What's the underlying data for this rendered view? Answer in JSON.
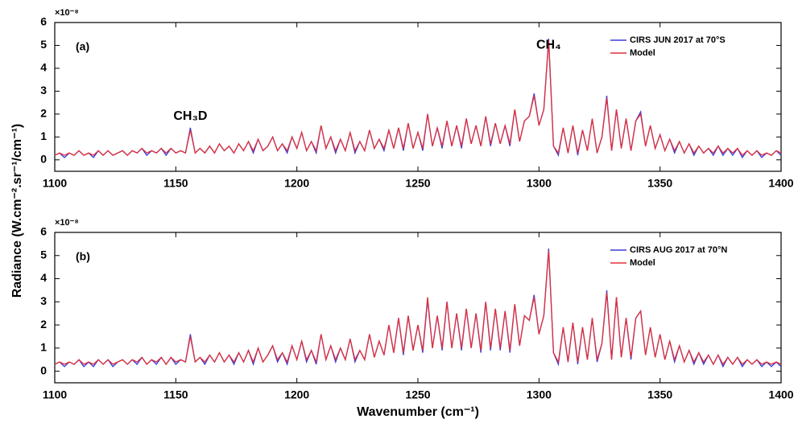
{
  "chart_data": [
    {
      "type": "line",
      "panel_label": "(a)",
      "axis_multiplier": "×10⁻⁸",
      "ylabel": "Radiance (W.cm⁻².sr⁻¹/cm⁻¹)",
      "annotations": [
        {
          "text": "CH₄",
          "x": 1304,
          "y": 5.0
        },
        {
          "text": "CH₃D",
          "x": 1156,
          "y": 1.9
        }
      ],
      "legend": "upper right",
      "xlim": [
        1100,
        1400
      ],
      "xticks": [
        1100,
        1150,
        1200,
        1250,
        1300,
        1350,
        1400
      ],
      "ylim": [
        -0.5,
        6
      ],
      "yticks": [
        0,
        1,
        2,
        3,
        4,
        5,
        6
      ],
      "x": [
        1100,
        1102,
        1104,
        1106,
        1108,
        1110,
        1112,
        1114,
        1116,
        1118,
        1120,
        1122,
        1124,
        1126,
        1128,
        1130,
        1132,
        1134,
        1136,
        1138,
        1140,
        1142,
        1144,
        1146,
        1148,
        1150,
        1152,
        1154,
        1156,
        1158,
        1160,
        1162,
        1164,
        1166,
        1168,
        1170,
        1172,
        1174,
        1176,
        1178,
        1180,
        1182,
        1184,
        1186,
        1188,
        1190,
        1192,
        1194,
        1196,
        1198,
        1200,
        1202,
        1204,
        1206,
        1208,
        1210,
        1212,
        1214,
        1216,
        1218,
        1220,
        1222,
        1224,
        1226,
        1228,
        1230,
        1232,
        1234,
        1236,
        1238,
        1240,
        1242,
        1244,
        1246,
        1248,
        1250,
        1252,
        1254,
        1256,
        1258,
        1260,
        1262,
        1264,
        1266,
        1268,
        1270,
        1272,
        1274,
        1276,
        1278,
        1280,
        1282,
        1284,
        1286,
        1288,
        1290,
        1292,
        1294,
        1296,
        1298,
        1300,
        1302,
        1304,
        1306,
        1308,
        1310,
        1312,
        1314,
        1316,
        1318,
        1320,
        1322,
        1324,
        1326,
        1328,
        1330,
        1332,
        1334,
        1336,
        1338,
        1340,
        1342,
        1344,
        1346,
        1348,
        1350,
        1352,
        1354,
        1356,
        1358,
        1360,
        1362,
        1364,
        1366,
        1368,
        1370,
        1372,
        1374,
        1376,
        1378,
        1380,
        1382,
        1384,
        1386,
        1388,
        1390,
        1392,
        1394,
        1396,
        1398,
        1400
      ],
      "series": [
        {
          "name": "CIRS JUN 2017 at 70°S",
          "color": "#3b3bd8",
          "values": [
            0.2,
            0.3,
            0.1,
            0.3,
            0.2,
            0.4,
            0.2,
            0.3,
            0.1,
            0.4,
            0.2,
            0.4,
            0.2,
            0.3,
            0.4,
            0.2,
            0.4,
            0.3,
            0.5,
            0.2,
            0.4,
            0.3,
            0.5,
            0.2,
            0.5,
            0.3,
            0.4,
            0.3,
            1.4,
            0.3,
            0.5,
            0.3,
            0.6,
            0.3,
            0.7,
            0.4,
            0.6,
            0.3,
            0.7,
            0.4,
            0.8,
            0.3,
            0.9,
            0.4,
            0.6,
            1.0,
            0.4,
            0.7,
            0.3,
            1.0,
            0.5,
            1.2,
            0.4,
            0.8,
            0.3,
            1.5,
            0.5,
            1.0,
            0.3,
            0.9,
            0.4,
            1.2,
            0.3,
            0.8,
            0.4,
            1.3,
            0.5,
            0.9,
            0.4,
            1.3,
            0.5,
            1.4,
            0.4,
            1.6,
            0.5,
            1.2,
            0.4,
            2.0,
            0.6,
            1.4,
            0.5,
            1.7,
            0.6,
            1.5,
            0.5,
            1.8,
            0.7,
            1.5,
            0.6,
            1.9,
            0.6,
            1.6,
            0.7,
            1.5,
            0.6,
            2.2,
            0.8,
            1.7,
            1.9,
            2.9,
            1.5,
            2.2,
            5.3,
            0.6,
            0.2,
            1.4,
            0.3,
            1.5,
            0.2,
            1.3,
            0.4,
            1.8,
            0.3,
            1.0,
            2.8,
            0.4,
            2.2,
            0.5,
            1.8,
            0.4,
            1.7,
            2.1,
            0.6,
            1.5,
            0.5,
            1.1,
            0.4,
            0.9,
            0.3,
            0.8,
            0.3,
            0.7,
            0.2,
            0.6,
            0.3,
            0.5,
            0.2,
            0.6,
            0.2,
            0.5,
            0.2,
            0.5,
            0.1,
            0.4,
            0.2,
            0.4,
            0.1,
            0.3,
            0.2,
            0.4,
            0.2
          ]
        },
        {
          "name": "Model",
          "color": "#e0303a",
          "values": [
            0.2,
            0.3,
            0.2,
            0.3,
            0.2,
            0.4,
            0.2,
            0.3,
            0.2,
            0.4,
            0.2,
            0.4,
            0.2,
            0.3,
            0.4,
            0.2,
            0.4,
            0.3,
            0.5,
            0.3,
            0.4,
            0.3,
            0.5,
            0.3,
            0.5,
            0.3,
            0.4,
            0.3,
            1.3,
            0.3,
            0.5,
            0.3,
            0.6,
            0.3,
            0.7,
            0.4,
            0.6,
            0.3,
            0.7,
            0.4,
            0.8,
            0.4,
            0.9,
            0.4,
            0.6,
            1.0,
            0.4,
            0.7,
            0.4,
            1.0,
            0.5,
            1.2,
            0.4,
            0.8,
            0.4,
            1.5,
            0.5,
            1.0,
            0.4,
            0.9,
            0.4,
            1.2,
            0.4,
            0.8,
            0.4,
            1.3,
            0.5,
            0.9,
            0.5,
            1.3,
            0.5,
            1.4,
            0.5,
            1.6,
            0.5,
            1.2,
            0.5,
            2.0,
            0.6,
            1.4,
            0.6,
            1.7,
            0.6,
            1.5,
            0.6,
            1.8,
            0.7,
            1.5,
            0.6,
            1.9,
            0.7,
            1.6,
            0.7,
            1.5,
            0.7,
            2.2,
            0.8,
            1.7,
            1.9,
            2.8,
            1.5,
            2.2,
            5.2,
            0.6,
            0.3,
            1.4,
            0.3,
            1.5,
            0.3,
            1.3,
            0.4,
            1.8,
            0.3,
            1.0,
            2.7,
            0.4,
            2.2,
            0.5,
            1.8,
            0.4,
            1.7,
            2.0,
            0.6,
            1.5,
            0.5,
            1.1,
            0.4,
            0.9,
            0.4,
            0.8,
            0.3,
            0.7,
            0.3,
            0.6,
            0.3,
            0.5,
            0.3,
            0.6,
            0.3,
            0.5,
            0.3,
            0.5,
            0.2,
            0.4,
            0.2,
            0.4,
            0.2,
            0.3,
            0.2,
            0.4,
            0.3
          ]
        }
      ]
    },
    {
      "type": "line",
      "panel_label": "(b)",
      "axis_multiplier": "×10⁻⁸",
      "xlabel": "Wavenumber (cm⁻¹)",
      "legend": "upper right",
      "xlim": [
        1100,
        1400
      ],
      "xticks": [
        1100,
        1150,
        1200,
        1250,
        1300,
        1350,
        1400
      ],
      "ylim": [
        -0.5,
        6
      ],
      "yticks": [
        0,
        1,
        2,
        3,
        4,
        5,
        6
      ],
      "x": [
        1100,
        1102,
        1104,
        1106,
        1108,
        1110,
        1112,
        1114,
        1116,
        1118,
        1120,
        1122,
        1124,
        1126,
        1128,
        1130,
        1132,
        1134,
        1136,
        1138,
        1140,
        1142,
        1144,
        1146,
        1148,
        1150,
        1152,
        1154,
        1156,
        1158,
        1160,
        1162,
        1164,
        1166,
        1168,
        1170,
        1172,
        1174,
        1176,
        1178,
        1180,
        1182,
        1184,
        1186,
        1188,
        1190,
        1192,
        1194,
        1196,
        1198,
        1200,
        1202,
        1204,
        1206,
        1208,
        1210,
        1212,
        1214,
        1216,
        1218,
        1220,
        1222,
        1224,
        1226,
        1228,
        1230,
        1232,
        1234,
        1236,
        1238,
        1240,
        1242,
        1244,
        1246,
        1248,
        1250,
        1252,
        1254,
        1256,
        1258,
        1260,
        1262,
        1264,
        1266,
        1268,
        1270,
        1272,
        1274,
        1276,
        1278,
        1280,
        1282,
        1284,
        1286,
        1288,
        1290,
        1292,
        1294,
        1296,
        1298,
        1300,
        1302,
        1304,
        1306,
        1308,
        1310,
        1312,
        1314,
        1316,
        1318,
        1320,
        1322,
        1324,
        1326,
        1328,
        1330,
        1332,
        1334,
        1336,
        1338,
        1340,
        1342,
        1344,
        1346,
        1348,
        1350,
        1352,
        1354,
        1356,
        1358,
        1360,
        1362,
        1364,
        1366,
        1368,
        1370,
        1372,
        1374,
        1376,
        1378,
        1380,
        1382,
        1384,
        1386,
        1388,
        1390,
        1392,
        1394,
        1396,
        1398,
        1400
      ],
      "series": [
        {
          "name": "CIRS AUG 2017 at 70°N",
          "color": "#3b3bd8",
          "values": [
            0.3,
            0.4,
            0.2,
            0.4,
            0.3,
            0.5,
            0.2,
            0.4,
            0.2,
            0.5,
            0.3,
            0.5,
            0.2,
            0.4,
            0.5,
            0.3,
            0.5,
            0.3,
            0.6,
            0.3,
            0.5,
            0.3,
            0.6,
            0.3,
            0.6,
            0.3,
            0.5,
            0.4,
            1.6,
            0.4,
            0.6,
            0.3,
            0.7,
            0.4,
            0.8,
            0.4,
            0.7,
            0.3,
            0.8,
            0.4,
            0.9,
            0.3,
            1.0,
            0.4,
            0.7,
            1.1,
            0.4,
            0.8,
            0.3,
            1.1,
            0.5,
            1.3,
            0.4,
            0.9,
            0.3,
            1.6,
            0.5,
            1.1,
            0.4,
            1.0,
            0.5,
            1.4,
            0.4,
            0.9,
            0.5,
            1.6,
            0.6,
            1.3,
            0.7,
            2.0,
            0.8,
            2.3,
            0.7,
            2.4,
            0.9,
            2.0,
            0.8,
            3.1,
            1.0,
            2.4,
            0.9,
            3.0,
            1.0,
            2.5,
            0.9,
            2.7,
            1.0,
            2.5,
            0.8,
            3.0,
            0.9,
            2.7,
            0.9,
            2.6,
            0.8,
            2.9,
            1.1,
            2.4,
            2.2,
            3.3,
            1.6,
            2.4,
            5.3,
            0.8,
            0.3,
            1.9,
            0.4,
            2.1,
            0.3,
            1.9,
            0.5,
            2.3,
            0.4,
            1.2,
            3.5,
            0.5,
            3.2,
            0.6,
            2.3,
            0.5,
            2.3,
            2.6,
            0.7,
            1.9,
            0.6,
            1.6,
            0.5,
            1.3,
            0.4,
            1.1,
            0.4,
            0.9,
            0.3,
            0.8,
            0.3,
            0.7,
            0.3,
            0.7,
            0.2,
            0.6,
            0.3,
            0.6,
            0.2,
            0.5,
            0.3,
            0.5,
            0.2,
            0.4,
            0.2,
            0.4,
            0.2
          ]
        },
        {
          "name": "Model",
          "color": "#e0303a",
          "values": [
            0.3,
            0.4,
            0.3,
            0.4,
            0.3,
            0.5,
            0.3,
            0.4,
            0.3,
            0.5,
            0.3,
            0.5,
            0.3,
            0.4,
            0.5,
            0.3,
            0.5,
            0.4,
            0.6,
            0.3,
            0.5,
            0.4,
            0.6,
            0.3,
            0.6,
            0.4,
            0.5,
            0.4,
            1.5,
            0.4,
            0.6,
            0.4,
            0.7,
            0.4,
            0.8,
            0.4,
            0.7,
            0.4,
            0.8,
            0.4,
            0.9,
            0.4,
            1.0,
            0.4,
            0.7,
            1.1,
            0.5,
            0.8,
            0.4,
            1.1,
            0.5,
            1.3,
            0.5,
            0.9,
            0.4,
            1.6,
            0.5,
            1.1,
            0.5,
            1.0,
            0.5,
            1.4,
            0.5,
            0.9,
            0.5,
            1.6,
            0.6,
            1.3,
            0.7,
            2.0,
            0.8,
            2.3,
            0.8,
            2.4,
            0.9,
            2.0,
            0.9,
            3.2,
            1.0,
            2.4,
            1.0,
            3.0,
            1.0,
            2.5,
            1.0,
            2.7,
            1.0,
            2.5,
            0.9,
            3.0,
            1.0,
            2.7,
            1.0,
            2.6,
            0.9,
            2.9,
            1.1,
            2.4,
            2.2,
            3.2,
            1.6,
            2.4,
            5.2,
            0.8,
            0.4,
            1.9,
            0.4,
            2.1,
            0.4,
            1.9,
            0.5,
            2.3,
            0.5,
            1.2,
            3.4,
            0.5,
            3.2,
            0.6,
            2.3,
            0.6,
            2.3,
            2.6,
            0.7,
            1.9,
            0.6,
            1.6,
            0.5,
            1.3,
            0.5,
            1.1,
            0.4,
            0.9,
            0.4,
            0.8,
            0.4,
            0.7,
            0.3,
            0.7,
            0.3,
            0.6,
            0.3,
            0.6,
            0.3,
            0.5,
            0.3,
            0.5,
            0.3,
            0.4,
            0.3,
            0.4,
            0.3
          ]
        }
      ]
    }
  ]
}
